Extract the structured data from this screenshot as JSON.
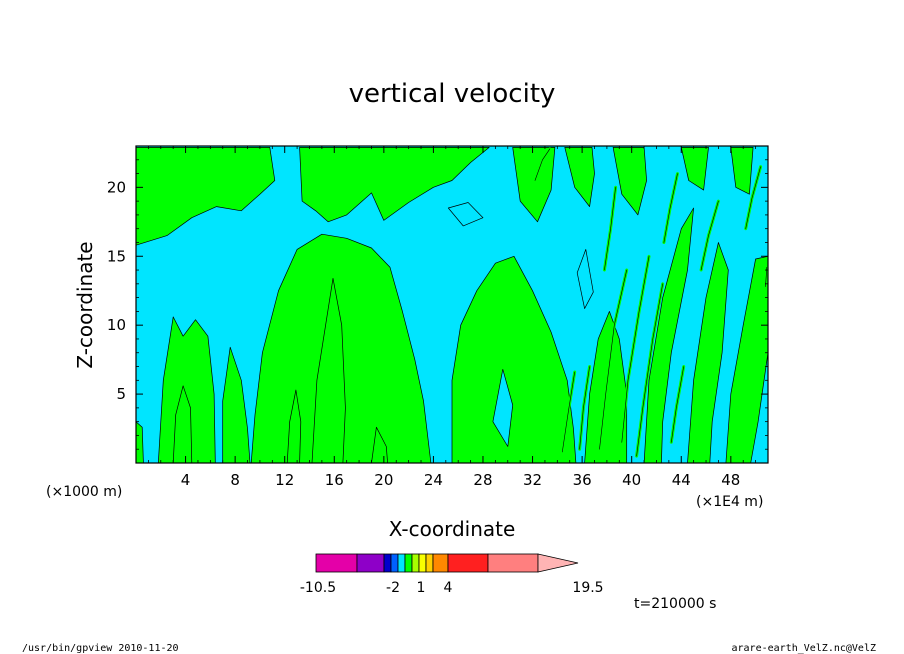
{
  "chart_data": {
    "type": "heatmap",
    "title": "vertical velocity",
    "xlabel": "X-coordinate",
    "ylabel": "Z-coordinate",
    "x_unit_left": "(×1000 m)",
    "x_unit_right": "(×1E4 m)",
    "xlim": [
      0,
      51
    ],
    "ylim": [
      0,
      23
    ],
    "x_ticks": [
      4,
      8,
      12,
      16,
      20,
      24,
      28,
      32,
      36,
      40,
      44,
      48
    ],
    "y_ticks": [
      5,
      10,
      15,
      20
    ],
    "fill_colors": {
      "negative": "#00e5ff",
      "positive": "#00ff00"
    },
    "green_regions": [
      [
        [
          0,
          15.8
        ],
        [
          2.5,
          16.5
        ],
        [
          4.5,
          17.8
        ],
        [
          6.5,
          18.6
        ],
        [
          8.5,
          18.3
        ],
        [
          10,
          19.5
        ],
        [
          11.2,
          20.5
        ],
        [
          10.8,
          22.9
        ],
        [
          0,
          22.9
        ]
      ],
      [
        [
          13.2,
          22.9
        ],
        [
          13.4,
          19
        ],
        [
          14.5,
          18.3
        ],
        [
          15.5,
          17.5
        ],
        [
          17,
          18
        ],
        [
          19,
          19.6
        ],
        [
          20,
          17.6
        ],
        [
          22,
          18.9
        ],
        [
          24,
          20
        ],
        [
          25.5,
          20.5
        ],
        [
          27,
          21.8
        ],
        [
          28.5,
          22.9
        ]
      ],
      [
        [
          9.3,
          0
        ],
        [
          9.6,
          3.5
        ],
        [
          10.2,
          8
        ],
        [
          11.5,
          12.5
        ],
        [
          13,
          15.5
        ],
        [
          15,
          16.6
        ],
        [
          17,
          16.3
        ],
        [
          19,
          15.6
        ],
        [
          20.5,
          14.2
        ],
        [
          21.5,
          11
        ],
        [
          22.5,
          7.5
        ],
        [
          23.2,
          4.5
        ],
        [
          23.8,
          0
        ]
      ],
      [
        [
          25.5,
          0
        ],
        [
          25.5,
          6
        ],
        [
          26.2,
          10
        ],
        [
          27.5,
          12.5
        ],
        [
          29,
          14.5
        ],
        [
          30.5,
          15
        ],
        [
          32,
          12.5
        ],
        [
          33.5,
          9.5
        ],
        [
          34.8,
          6
        ],
        [
          35.3,
          2.5
        ],
        [
          35.5,
          0
        ]
      ],
      [
        [
          14.2,
          0
        ],
        [
          14.6,
          6
        ],
        [
          15.3,
          10
        ],
        [
          15.9,
          13.4
        ],
        [
          16.6,
          10
        ],
        [
          16.9,
          4
        ],
        [
          16.7,
          0
        ]
      ],
      [
        [
          1.8,
          0
        ],
        [
          2.2,
          6
        ],
        [
          3,
          10.6
        ],
        [
          3.8,
          9.2
        ],
        [
          4.8,
          10.4
        ],
        [
          5.8,
          9.2
        ],
        [
          6.3,
          5
        ],
        [
          6.4,
          0
        ]
      ],
      [
        [
          7,
          0
        ],
        [
          7,
          4.5
        ],
        [
          7.6,
          8.4
        ],
        [
          8.5,
          6
        ],
        [
          9,
          2.5
        ],
        [
          9.2,
          0
        ]
      ],
      [
        [
          3,
          0
        ],
        [
          3.2,
          3.5
        ],
        [
          3.8,
          5.6
        ],
        [
          4.4,
          4
        ],
        [
          4.5,
          0
        ]
      ],
      [
        [
          12.2,
          0
        ],
        [
          12.4,
          3
        ],
        [
          12.9,
          5.3
        ],
        [
          13.3,
          3
        ],
        [
          13.2,
          0
        ]
      ],
      [
        [
          0,
          0
        ],
        [
          0,
          3
        ],
        [
          0.5,
          2.6
        ],
        [
          0.6,
          0
        ]
      ],
      [
        [
          19,
          0
        ],
        [
          19.4,
          2.6
        ],
        [
          20.2,
          1.2
        ],
        [
          20.3,
          0
        ]
      ],
      [
        [
          36.2,
          0
        ],
        [
          36.6,
          5
        ],
        [
          37.3,
          9
        ],
        [
          38.2,
          11
        ],
        [
          39,
          9
        ],
        [
          39.6,
          5
        ],
        [
          39.6,
          0
        ]
      ],
      [
        [
          41,
          0
        ],
        [
          41.4,
          6
        ],
        [
          42.5,
          12
        ],
        [
          44,
          17
        ],
        [
          45,
          18.5
        ],
        [
          44.5,
          14
        ],
        [
          43.2,
          8
        ],
        [
          42.5,
          3
        ],
        [
          42.4,
          0
        ]
      ],
      [
        [
          44.5,
          0
        ],
        [
          45,
          6
        ],
        [
          46,
          12
        ],
        [
          47,
          16
        ],
        [
          47.8,
          14
        ],
        [
          47.3,
          8
        ],
        [
          46.5,
          3
        ],
        [
          46.3,
          0
        ]
      ],
      [
        [
          47.6,
          0
        ],
        [
          48,
          5
        ],
        [
          49,
          10
        ],
        [
          50,
          14.8
        ],
        [
          51,
          15
        ],
        [
          51,
          8
        ],
        [
          50.2,
          3
        ],
        [
          49.6,
          0
        ]
      ],
      [
        [
          30.4,
          22.9
        ],
        [
          31,
          19
        ],
        [
          32.4,
          17.5
        ],
        [
          33.5,
          19.8
        ],
        [
          33.8,
          22.9
        ]
      ],
      [
        [
          34.6,
          22.9
        ],
        [
          35.4,
          20
        ],
        [
          36.6,
          18.6
        ],
        [
          37,
          21
        ],
        [
          36.8,
          22.9
        ]
      ],
      [
        [
          38.5,
          22.9
        ],
        [
          39.2,
          19.5
        ],
        [
          40.5,
          18
        ],
        [
          41.2,
          20.5
        ],
        [
          41,
          22.9
        ]
      ],
      [
        [
          44,
          22.9
        ],
        [
          44.6,
          20.5
        ],
        [
          45.8,
          19.8
        ],
        [
          46.2,
          22.9
        ]
      ],
      [
        [
          48,
          22.9
        ],
        [
          48.4,
          20
        ],
        [
          49.5,
          19.5
        ],
        [
          49.8,
          22.9
        ]
      ]
    ],
    "cyan_islands": [
      [
        [
          25.2,
          18.5
        ],
        [
          26.4,
          17.2
        ],
        [
          28,
          17.8
        ],
        [
          26.8,
          18.9
        ]
      ],
      [
        [
          35.6,
          13.8
        ],
        [
          36.3,
          15.5
        ],
        [
          36.9,
          12.4
        ],
        [
          36.2,
          11.2
        ]
      ],
      [
        [
          28.8,
          3
        ],
        [
          29.6,
          6.8
        ],
        [
          30.4,
          4.2
        ],
        [
          30,
          1.2
        ]
      ]
    ],
    "thin_streaks": [
      [
        [
          37.4,
          1
        ],
        [
          37.9,
          5
        ],
        [
          38.6,
          10
        ],
        [
          39.6,
          14
        ]
      ],
      [
        [
          39.2,
          1.5
        ],
        [
          39.7,
          6
        ],
        [
          40.6,
          11
        ],
        [
          41.4,
          15
        ]
      ],
      [
        [
          40.4,
          0.5
        ],
        [
          40.9,
          4
        ],
        [
          41.7,
          9
        ],
        [
          42.5,
          13
        ]
      ],
      [
        [
          35.8,
          1
        ],
        [
          36.1,
          4
        ],
        [
          36.6,
          7
        ]
      ],
      [
        [
          34.4,
          0.8
        ],
        [
          34.9,
          3.8
        ],
        [
          35.4,
          6.6
        ]
      ],
      [
        [
          43.2,
          1.5
        ],
        [
          43.6,
          4
        ],
        [
          44.2,
          7
        ]
      ],
      [
        [
          45.6,
          14
        ],
        [
          46.2,
          16.5
        ],
        [
          47,
          19
        ]
      ],
      [
        [
          42.6,
          16
        ],
        [
          43.1,
          18.5
        ],
        [
          43.7,
          21
        ]
      ],
      [
        [
          37.8,
          14
        ],
        [
          38.3,
          17
        ],
        [
          38.7,
          20
        ]
      ],
      [
        [
          32.2,
          20.5
        ],
        [
          32.8,
          22
        ],
        [
          33.4,
          22.8
        ]
      ],
      [
        [
          49.2,
          17
        ],
        [
          49.7,
          19.2
        ],
        [
          50.4,
          21.5
        ]
      ],
      [
        [
          50.8,
          12.8
        ],
        [
          50.9,
          14.2
        ]
      ]
    ],
    "colorbar": {
      "colors": [
        "#e400a8",
        "#8e00c8",
        "#0000cc",
        "#0060ff",
        "#00e5ff",
        "#00ff00",
        "#a8ff00",
        "#f8ff00",
        "#ffd000",
        "#ff8800",
        "#ff2020",
        "#ff7f7f",
        "#ffb4b4"
      ],
      "tick_labels": [
        "-10.5",
        "-2",
        "1",
        "4",
        "19.5"
      ]
    },
    "time_label": "t=210000 s",
    "footer_left": "/usr/bin/gpview   2010-11-20",
    "footer_right": "arare-earth_VelZ.nc@VelZ"
  }
}
